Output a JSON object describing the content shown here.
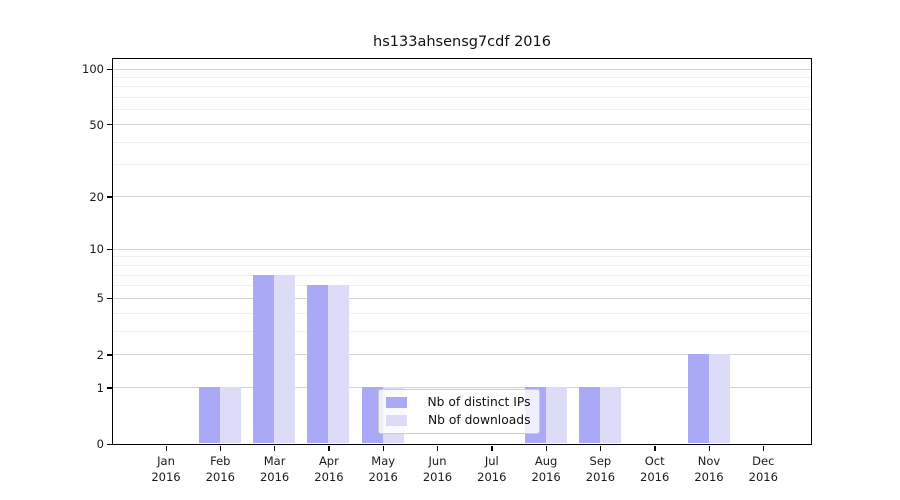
{
  "chart_data": {
    "type": "bar",
    "title": "hs133ahsensg7cdf 2016",
    "categories": [
      "Jan",
      "Feb",
      "Mar",
      "Apr",
      "May",
      "Jun",
      "Jul",
      "Aug",
      "Sep",
      "Oct",
      "Nov",
      "Dec"
    ],
    "category_year": "2016",
    "series": [
      {
        "name": "Nb of distinct IPs",
        "color": "#a9a9f5",
        "values": [
          0,
          1,
          7,
          6,
          1,
          0,
          0,
          1,
          1,
          0,
          2,
          0
        ]
      },
      {
        "name": "Nb of downloads",
        "color": "#dcdcf8",
        "values": [
          0,
          1,
          7,
          6,
          1,
          0,
          0,
          1,
          1,
          0,
          2,
          0
        ]
      }
    ],
    "yscale": "log1p",
    "ylim": [
      0,
      113
    ],
    "y_ticks_major": [
      0,
      1,
      2,
      5,
      10,
      20,
      50,
      100
    ],
    "y_ticks_minor": [
      3,
      4,
      6,
      7,
      8,
      9,
      30,
      40,
      60,
      70,
      80,
      90
    ],
    "grid": true,
    "legend_position": "inside-bottom-center",
    "colors": {
      "grid_major": "#d2d2d2",
      "grid_minor": "#efefef",
      "spine": "#000000",
      "background": "#ffffff"
    }
  }
}
